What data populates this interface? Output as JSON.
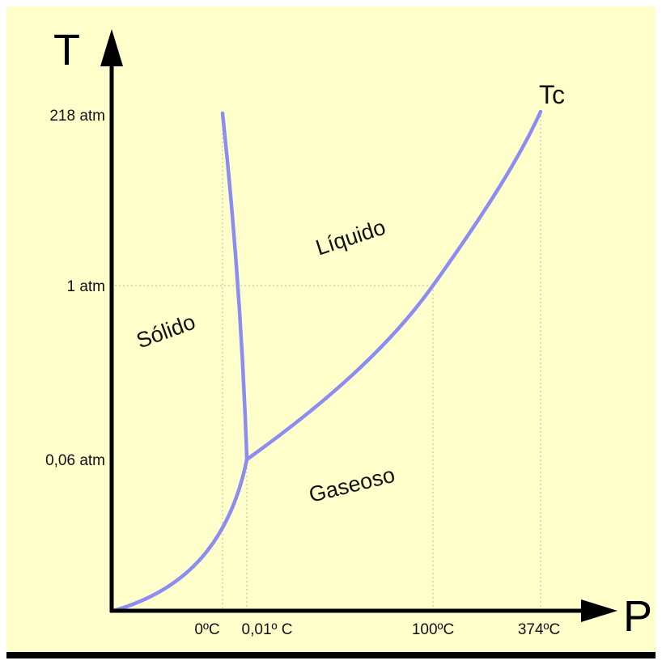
{
  "diagram": {
    "background_color": "#FFFFCC",
    "curve_color": "#8C8CF2",
    "axes": {
      "vertical_label": "T",
      "horizontal_label": "P"
    },
    "vertical_ticks": [
      "218 atm",
      "1 atm",
      "0,06 atm"
    ],
    "horizontal_ticks": [
      "0ºC",
      "0,01º C",
      "100ºC",
      "374ºC"
    ],
    "regions": {
      "solid": "Sólido",
      "liquid": "Líquido",
      "gas": "Gaseoso"
    },
    "critical_point_label": "Tc"
  }
}
